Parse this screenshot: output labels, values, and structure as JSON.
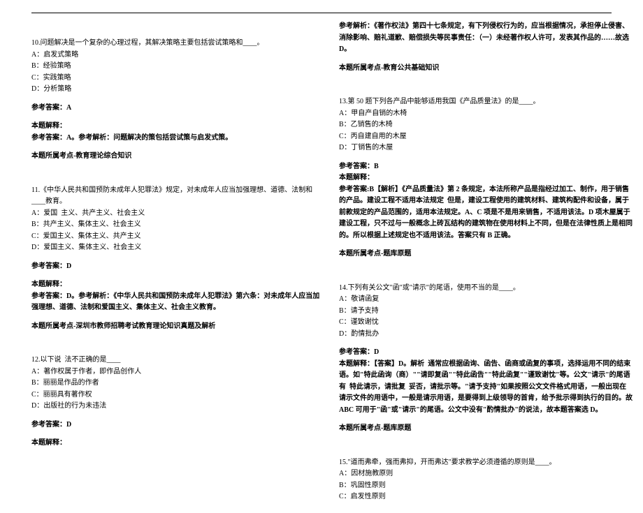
{
  "left": {
    "q10": {
      "stem": "10.问题解决是一个复杂的心理过程，其解决策略主要包括尝试策略和____。",
      "opts": [
        "A：启发式策略",
        "B：经验策略",
        "C：实践策略",
        "D：分析策略"
      ],
      "ansLabel": "参考答案：A",
      "expTitle": "本题解释：",
      "exp": "参考答案：A。参考解析：问题解决的策包括尝试策与启发式策。",
      "point": "本题所属考点-教育理论综合知识"
    },
    "q11": {
      "stem": "11.《中华人民共和国预防未成年人犯罪法》规定，对未成年人应当加强理想、道德、法制和____教育。",
      "opts": [
        "A：爱国  主义、共产主义、社会主义",
        "B：共产主义、集体主义、社会主义",
        "C：爱国主义、集体主义、共产主义",
        "D：爱国主义、集体主义、社会主义"
      ],
      "ansLabel": "参考答案：D",
      "expTitle": "本题解释：",
      "exp": "参考答案：D。参考解析：《中华人民共和国预防未成年人犯罪法》第六条：对未成年人应当加强理想、道德、法制和爱国主义、集体主义、社会主义教育。",
      "point": "本题所属考点-深圳市教师招聘考试教育理论知识真题及解析"
    },
    "q12": {
      "stem": "12.以下说  法不正确的是____",
      "opts": [
        "A：著作权属于作者，即作品创作人",
        "B：丽丽是作品的作者",
        "C：丽丽具有著作权",
        "D：出版社的行为未违法"
      ],
      "ansLabel": "参考答案：D",
      "expTitle": "本题解释："
    }
  },
  "right": {
    "q12exp": {
      "exp": "参考解析：《著作权法》第四十七条规定，有下列侵权行为的，应当根据情况，承担停止侵害、消除影响、赔礼道歉、赔偿损失等民事责任：（一）未经著作权人许可，发表其作品的……故选 D。",
      "point": "本题所属考点-教育公共基础知识"
    },
    "q13": {
      "stem": "13.第 50 题下列各产品中能够适用我国《产品质量法》的是____。",
      "opts": [
        "A：甲自产自销的木椅",
        "B：乙销售的木椅",
        "C：丙自建自用的木屋",
        "D：丁销售的木屋"
      ],
      "ansLabel": "参考答案：B",
      "expTitle": "本题解释：",
      "exp": "参考答案:B【解析】《产品质量法》第 2 条规定，本法所称产品是指经过加工、制作，用于销售的产品。建设工程不适用本法规定  但是，建设工程使用的建筑材料、建筑构配件和设备，属于前款规定的产品范围的，适用本法规定。A、C 项是不是用来销售，不适用该法。D 项木屋属于建设工程，只不过与一般概念上砖瓦结构的建筑物在使用材料上不同，但是在法律性质上是相同的。所以根据上述规定也不适用该法。答案只有 B 正确。",
      "point": "本题所属考点-题库原题"
    },
    "q14": {
      "stem": "14.下列有关公文\"函\"或\"请示\"的尾语，使用不当的是____。",
      "opts": [
        "A：敬请函复",
        "B：请予支持",
        "C：谨致谢忱",
        "D：酌情批办"
      ],
      "ansLabel": "参考答案：D",
      "exp": "本题解释：【答案】D。解析  通常应根据函询、函告、函商或函复的事项，选择运用不同的结束语。如\"特此函询（商）\"\"请即复函\"\"特此函告\"\"特此函复\"\"谨致谢忱\"等。公文\"请示\"的尾语有  特此请示，请批复  妥否，请批示等。\"请予支持\"如果按照公文文件格式用语，一般出现在请示文件的用语中，一般是请示用语，是要得到上级领导的首肯，给予批示得到执行的目的。故 ABC 可用于\"函\"或\"请示\"的尾语。公文中没有\"酌情批办\"的说法，故本题答案选 D。",
      "point": "本题所属考点-题库原题"
    },
    "q15": {
      "stem": "15.\"道而弗牵，强而弗抑，开而弗达\"要求教学必须遵循的原则是____。",
      "opts": [
        "A：因材施教原则",
        "B：巩固性原则",
        "C：启发性原则"
      ]
    }
  }
}
